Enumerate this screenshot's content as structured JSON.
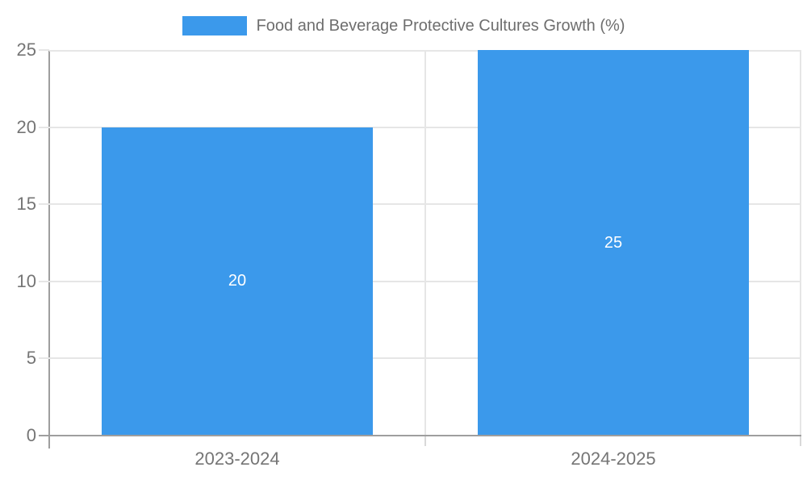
{
  "legend": {
    "swatch_color": "#3B99EB",
    "label": "Food and Beverage Protective Cultures Growth (%)"
  },
  "chart_data": {
    "type": "bar",
    "title": "Food and Beverage Protective Cultures Growth (%)",
    "categories": [
      "2023-2024",
      "2024-2025"
    ],
    "series": [
      {
        "name": "Food and Beverage Protective Cultures Growth (%)",
        "values": [
          20,
          25
        ]
      }
    ],
    "values": [
      20,
      25
    ],
    "bar_value_labels": [
      "20",
      "25"
    ],
    "xlabel": "",
    "ylabel": "",
    "ylim": [
      0,
      25
    ],
    "yticks": [
      0,
      5,
      10,
      15,
      20,
      25
    ],
    "grid": true,
    "legend_position": "top",
    "colors": {
      "bar": "#3B99EB",
      "gridline": "#e6e6e6",
      "axis_line": "#9e9e9e",
      "tick": "#d9d9d9",
      "axis_text": "#757575",
      "title_text": "#6e6e6e",
      "value_label_text": "#ffffff",
      "background": "#ffffff"
    }
  }
}
